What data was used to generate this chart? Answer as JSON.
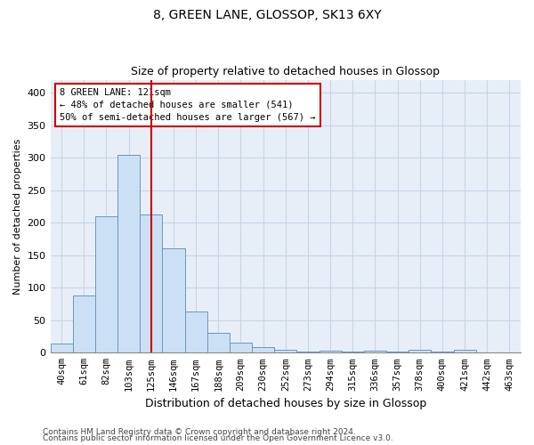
{
  "title": "8, GREEN LANE, GLOSSOP, SK13 6XY",
  "subtitle": "Size of property relative to detached houses in Glossop",
  "xlabel": "Distribution of detached houses by size in Glossop",
  "ylabel": "Number of detached properties",
  "bar_values": [
    14,
    88,
    210,
    305,
    212,
    160,
    64,
    30,
    15,
    8,
    5,
    2,
    3,
    2,
    3,
    2,
    4,
    2,
    4,
    0,
    0
  ],
  "bar_labels": [
    "40sqm",
    "61sqm",
    "82sqm",
    "103sqm",
    "125sqm",
    "146sqm",
    "167sqm",
    "188sqm",
    "209sqm",
    "230sqm",
    "252sqm",
    "273sqm",
    "294sqm",
    "315sqm",
    "336sqm",
    "357sqm",
    "378sqm",
    "400sqm",
    "421sqm",
    "442sqm",
    "463sqm"
  ],
  "bar_color": "#cce0f5",
  "bar_edge_color": "#6699bb",
  "vline_color": "#cc0000",
  "annotation_text": "8 GREEN LANE: 121sqm\n← 48% of detached houses are smaller (541)\n50% of semi-detached houses are larger (567) →",
  "annotation_box_facecolor": "#ffffff",
  "annotation_box_edgecolor": "#cc0000",
  "grid_color": "#c8d4e8",
  "background_color": "#e8eef8",
  "ylim": [
    0,
    420
  ],
  "yticks": [
    0,
    50,
    100,
    150,
    200,
    250,
    300,
    350,
    400
  ],
  "footer_line1": "Contains HM Land Registry data © Crown copyright and database right 2024.",
  "footer_line2": "Contains public sector information licensed under the Open Government Licence v3.0.",
  "title_fontsize": 10,
  "subtitle_fontsize": 9,
  "ylabel_fontsize": 8,
  "xlabel_fontsize": 9,
  "tick_fontsize": 7.5
}
